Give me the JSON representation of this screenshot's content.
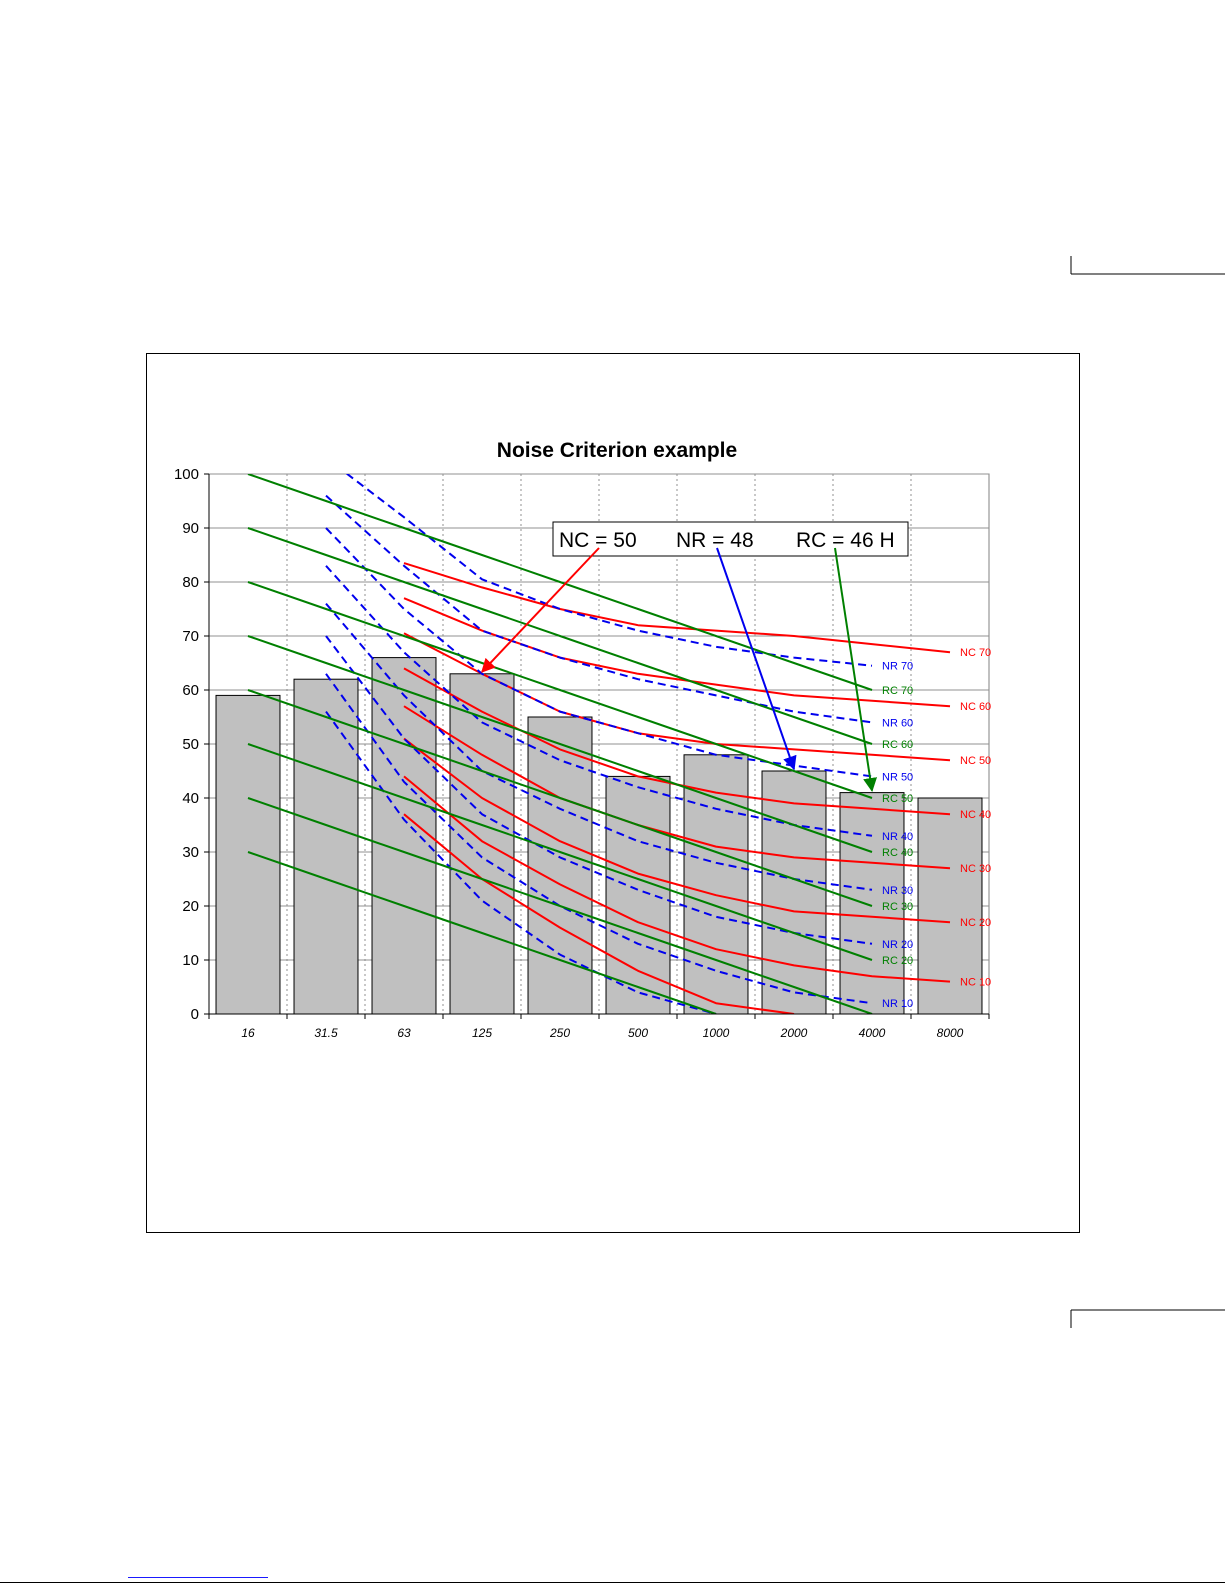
{
  "chart_data": {
    "type": "bar",
    "title": "Noise Criterion example",
    "xlabel": "",
    "ylabel": "",
    "categories": [
      "16",
      "31.5",
      "63",
      "125",
      "250",
      "500",
      "1000",
      "2000",
      "4000",
      "8000"
    ],
    "values": [
      59,
      62,
      66,
      63,
      55,
      44,
      48,
      45,
      41,
      40
    ],
    "ylim": [
      0,
      100
    ],
    "yticks": [
      0,
      10,
      20,
      30,
      40,
      50,
      60,
      70,
      80,
      90,
      100
    ],
    "grid": true,
    "bar_color": "#c0c0c0",
    "result_box": {
      "nc": "NC = 50",
      "nr": "NR = 48",
      "rc": "RC = 46 H",
      "nc_target": [
        "125",
        63
      ],
      "nr_target": [
        "2000",
        45
      ],
      "rc_target": [
        "4000",
        41
      ]
    },
    "curve_families": [
      {
        "family": "NC",
        "color": "#ff0000",
        "dash": false,
        "start_index": 2,
        "curves": [
          {
            "name": "NC 70",
            "values": [
              83.5,
              79,
              75,
              72,
              71,
              70,
              68.5,
              67
            ]
          },
          {
            "name": "NC 60",
            "values": [
              77,
              71,
              66,
              63,
              61,
              59,
              58,
              57
            ]
          },
          {
            "name": "NC 50",
            "values": [
              70.5,
              63,
              56,
              52,
              50,
              49,
              48,
              47
            ]
          },
          {
            "name": "NC 40",
            "values": [
              64,
              56,
              49,
              44,
              41,
              39,
              38,
              37
            ]
          },
          {
            "name": "NC 30",
            "values": [
              57,
              48,
              40,
              35,
              31,
              29,
              28,
              27
            ]
          },
          {
            "name": "NC 20",
            "values": [
              51,
              40,
              32,
              26,
              22,
              19,
              18,
              17
            ]
          },
          {
            "name": "NC 10",
            "values": [
              44,
              32,
              24,
              17,
              12,
              9,
              7,
              6
            ]
          },
          {
            "name": "",
            "values": [
              37,
              25,
              16,
              8,
              2,
              0,
              null,
              null
            ]
          }
        ]
      },
      {
        "family": "NR",
        "color": "#0000ee",
        "dash": true,
        "start_index": 1,
        "curves": [
          {
            "name": "NR 70",
            "values": [
              103,
              92,
              80.5,
              75,
              71,
              68,
              66,
              64.5
            ]
          },
          {
            "name": "NR 60",
            "values": [
              96,
              83,
              71,
              66,
              62,
              59,
              56,
              54
            ]
          },
          {
            "name": "NR 50",
            "values": [
              90,
              75,
              63,
              56,
              52,
              48,
              46,
              44
            ]
          },
          {
            "name": "NR 40",
            "values": [
              83,
              67,
              54,
              47,
              42,
              38,
              35,
              33
            ]
          },
          {
            "name": "NR 30",
            "values": [
              76,
              59,
              45,
              38,
              32,
              28,
              25,
              23
            ]
          },
          {
            "name": "NR 20",
            "values": [
              70,
              51,
              37,
              29,
              23,
              18,
              15,
              13
            ]
          },
          {
            "name": "NR 10",
            "values": [
              63,
              43,
              29,
              20,
              13,
              8,
              4,
              2
            ]
          },
          {
            "name": "",
            "values": [
              56,
              36,
              21,
              11,
              4,
              0,
              null,
              null
            ]
          }
        ]
      },
      {
        "family": "RC",
        "color": "#008000",
        "dash": false,
        "start_index": 0,
        "curves": [
          {
            "name": "RC 70",
            "values": [
              100,
              95,
              90,
              85,
              80,
              75,
              70,
              65,
              60
            ]
          },
          {
            "name": "RC 60",
            "values": [
              90,
              85,
              80,
              75,
              70,
              65,
              60,
              55,
              50
            ]
          },
          {
            "name": "RC 50",
            "values": [
              80,
              75,
              70,
              65,
              60,
              55,
              50,
              45,
              40
            ]
          },
          {
            "name": "RC 40",
            "values": [
              70,
              65,
              60,
              55,
              50,
              45,
              40,
              35,
              30
            ]
          },
          {
            "name": "RC 30",
            "values": [
              60,
              55,
              50,
              45,
              40,
              35,
              30,
              25,
              20
            ]
          },
          {
            "name": "RC 20",
            "values": [
              50,
              45,
              40,
              35,
              30,
              25,
              20,
              15,
              10
            ]
          },
          {
            "name": "",
            "values": [
              40,
              35,
              30,
              25,
              20,
              15,
              10,
              5,
              0
            ]
          },
          {
            "name": "",
            "values": [
              30,
              25,
              20,
              15,
              10,
              5,
              0,
              null,
              null
            ]
          }
        ]
      }
    ]
  }
}
